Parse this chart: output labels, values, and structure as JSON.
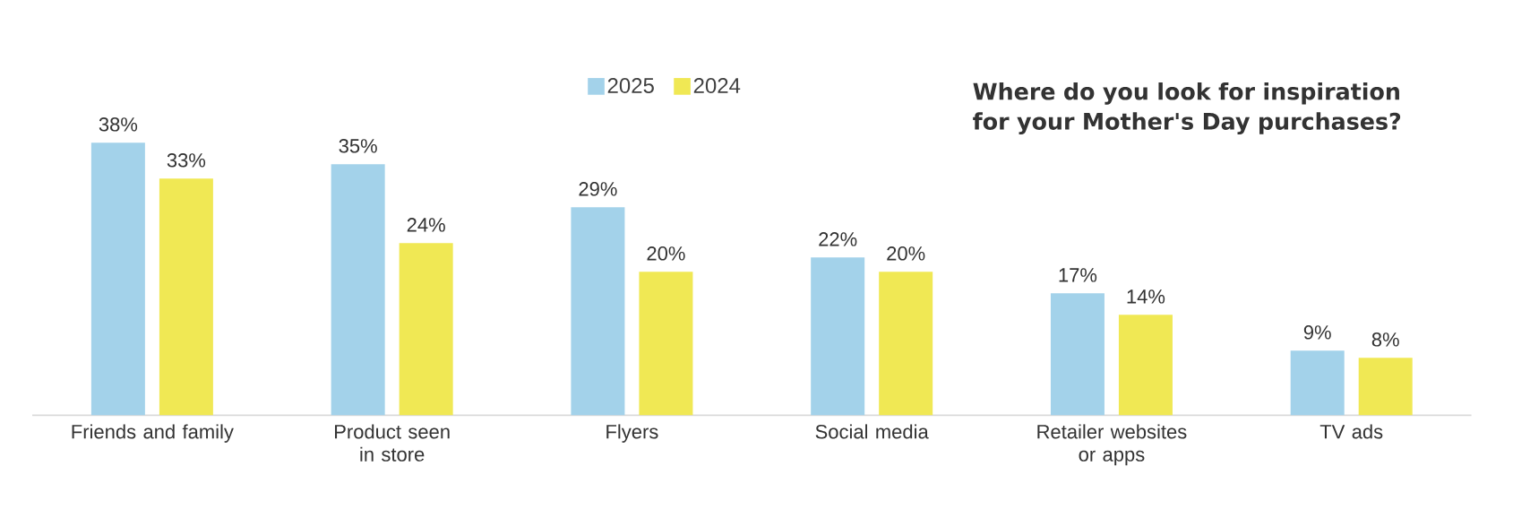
{
  "chart_data": {
    "type": "bar",
    "title": "Where do you look for inspiration for your Mother's Day purchases?",
    "categories": [
      "Friends and family",
      "Product seen in store",
      "Flyers",
      "Social media",
      "Retailer websites or apps",
      "TV ads"
    ],
    "series": [
      {
        "name": "2025",
        "color": "#a3d2ea",
        "values": [
          38,
          35,
          29,
          22,
          17,
          9
        ],
        "value_labels": [
          "38%",
          "35%",
          "29%",
          "22%",
          "17%",
          "9%"
        ]
      },
      {
        "name": "2024",
        "color": "#f0e854",
        "values": [
          33,
          24,
          20,
          20,
          14,
          8
        ],
        "value_labels": [
          "33%",
          "24%",
          "20%",
          "20%",
          "14%",
          "8%"
        ]
      }
    ],
    "legend": "top"
  }
}
